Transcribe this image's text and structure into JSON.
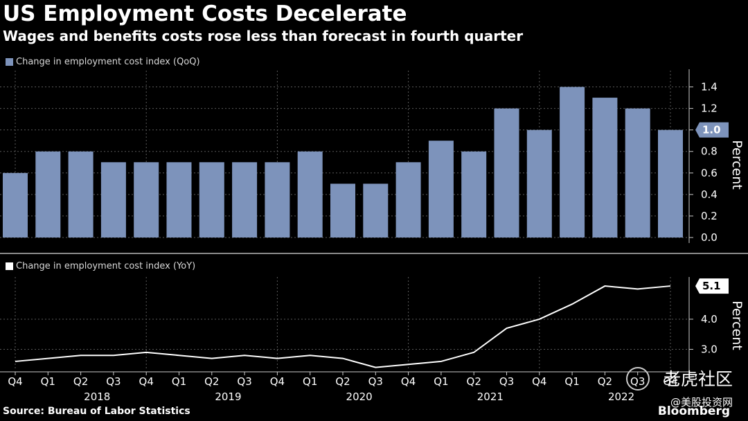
{
  "title": "US Employment Costs Decelerate",
  "subtitle": "Wages and benefits costs rose less than forecast in fourth quarter",
  "source": "Source: Bureau of Labor Statistics",
  "brand": "Bloomberg",
  "watermark": {
    "name": "老虎社区",
    "handle": "@美股投资网"
  },
  "colors": {
    "bar": "#7d93bb",
    "line": "#ffffff",
    "background": "#000000",
    "grid": "#5a5a5a"
  },
  "chart_data": [
    {
      "type": "bar",
      "legend": "Change in employment cost index (QoQ)",
      "ylabel": "Percent",
      "ylim": [
        0,
        1.5
      ],
      "yticks": [
        "0.0",
        "0.2",
        "0.4",
        "0.6",
        "0.8",
        "1.0",
        "1.2",
        "1.4"
      ],
      "last_value_label": "1.0",
      "grid": true,
      "categories": [
        "Q4 2017",
        "Q1 2018",
        "Q2 2018",
        "Q3 2018",
        "Q4 2018",
        "Q1 2019",
        "Q2 2019",
        "Q3 2019",
        "Q4 2019",
        "Q1 2020",
        "Q2 2020",
        "Q3 2020",
        "Q4 2020",
        "Q1 2021",
        "Q2 2021",
        "Q3 2021",
        "Q4 2021",
        "Q1 2022",
        "Q2 2022",
        "Q3 2022",
        "Q4 2022"
      ],
      "values": [
        0.6,
        0.8,
        0.8,
        0.7,
        0.7,
        0.7,
        0.7,
        0.7,
        0.7,
        0.8,
        0.5,
        0.5,
        0.7,
        0.9,
        0.8,
        1.2,
        1.0,
        1.4,
        1.3,
        1.2,
        1.0
      ]
    },
    {
      "type": "line",
      "legend": "Change in employment cost index (YoY)",
      "ylabel": "Percent",
      "ylim": [
        2.3,
        5.4
      ],
      "yticks": [
        "3.0",
        "4.0",
        "5.1"
      ],
      "last_value_label": "5.1",
      "grid": true,
      "categories": [
        "Q4 2017",
        "Q1 2018",
        "Q2 2018",
        "Q3 2018",
        "Q4 2018",
        "Q1 2019",
        "Q2 2019",
        "Q3 2019",
        "Q4 2019",
        "Q1 2020",
        "Q2 2020",
        "Q3 2020",
        "Q4 2020",
        "Q1 2021",
        "Q2 2021",
        "Q3 2021",
        "Q4 2021",
        "Q1 2022",
        "Q2 2022",
        "Q3 2022",
        "Q4 2022"
      ],
      "values": [
        2.6,
        2.7,
        2.8,
        2.8,
        2.9,
        2.8,
        2.7,
        2.8,
        2.7,
        2.8,
        2.7,
        2.4,
        2.5,
        2.6,
        2.9,
        3.7,
        4.0,
        4.5,
        5.1,
        5.0,
        5.1
      ]
    }
  ],
  "x_axis": {
    "quarter_labels": [
      "Q4",
      "Q1",
      "Q2",
      "Q3",
      "Q4",
      "Q1",
      "Q2",
      "Q3",
      "Q4",
      "Q1",
      "Q2",
      "Q3",
      "Q4",
      "Q1",
      "Q2",
      "Q3",
      "Q4",
      "Q1",
      "Q2",
      "Q3",
      "Q4"
    ],
    "years": [
      "2018",
      "2019",
      "2020",
      "2021",
      "2022"
    ]
  }
}
